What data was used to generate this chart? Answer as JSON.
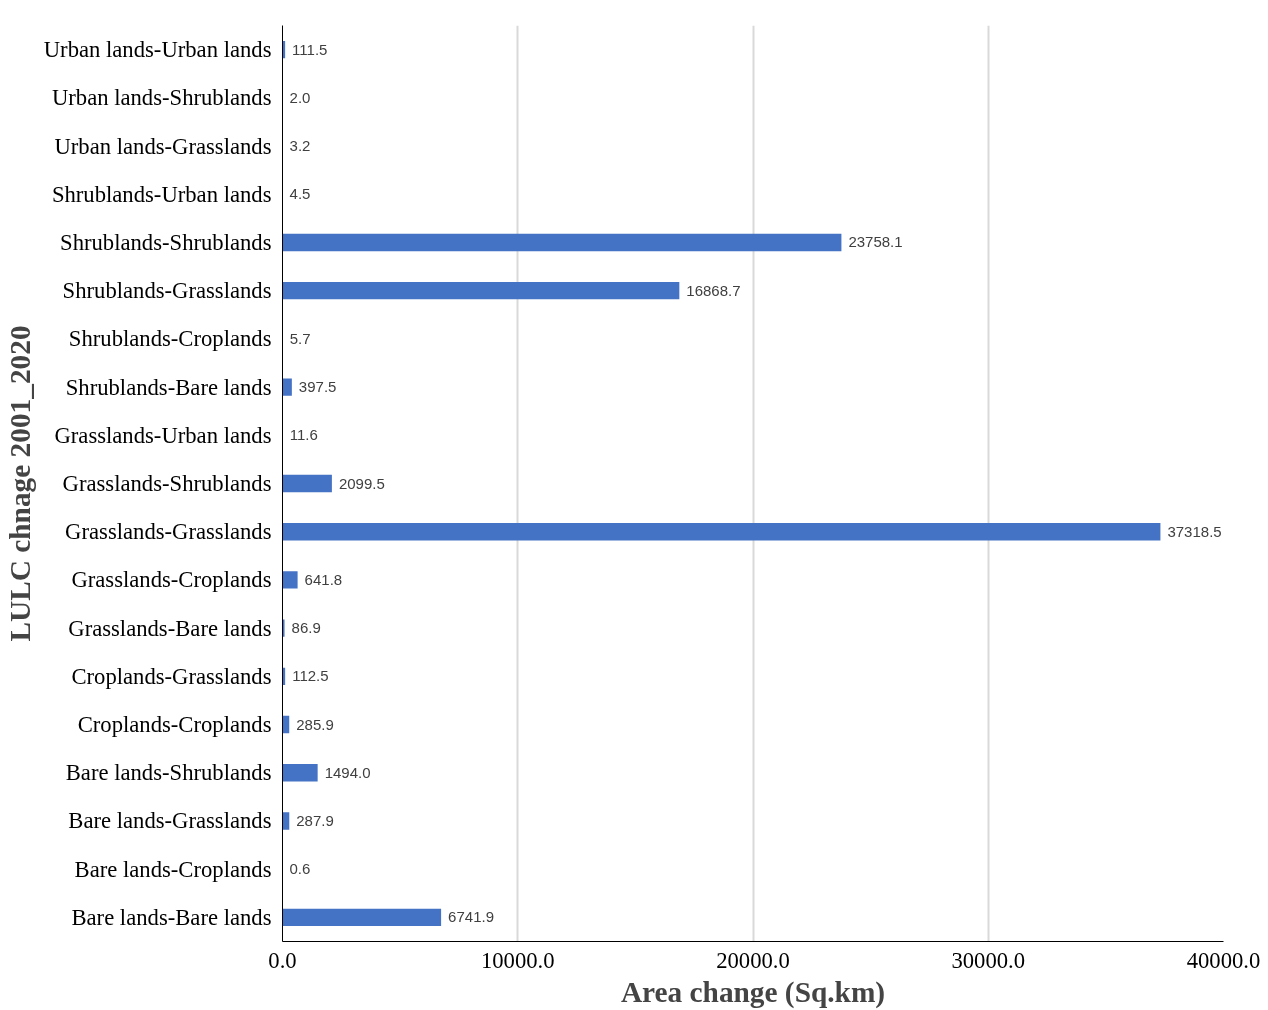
{
  "chart_data": {
    "type": "bar",
    "orientation": "horizontal",
    "xlabel": "Area change (Sq.km)",
    "ylabel": "LULC chnage 2001_2020",
    "categories": [
      "Urban lands-Urban lands",
      "Urban lands-Shrublands",
      "Urban lands-Grasslands",
      "Shrublands-Urban lands",
      "Shrublands-Shrublands",
      "Shrublands-Grasslands",
      "Shrublands-Croplands",
      "Shrublands-Bare lands",
      "Grasslands-Urban lands",
      "Grasslands-Shrublands",
      "Grasslands-Grasslands",
      "Grasslands-Croplands",
      "Grasslands-Bare lands",
      "Croplands-Grasslands",
      "Croplands-Croplands",
      "Bare lands-Shrublands",
      "Bare lands-Grasslands",
      "Bare lands-Croplands",
      "Bare lands-Bare lands"
    ],
    "values": [
      111.5,
      2.0,
      3.2,
      4.5,
      23758.1,
      16868.7,
      5.7,
      397.5,
      11.6,
      2099.5,
      37318.5,
      641.8,
      86.9,
      112.5,
      285.9,
      1494.0,
      287.9,
      0.6,
      6741.9
    ],
    "value_labels": [
      "111.5",
      "2.0",
      "3.2",
      "4.5",
      "23758.1",
      "16868.7",
      "5.7",
      "397.5",
      "11.6",
      "2099.5",
      "37318.5",
      "641.8",
      "86.9",
      "112.5",
      "285.9",
      "1494.0",
      "287.9",
      "0.6",
      "6741.9"
    ],
    "color": "#4472c4",
    "xlim": [
      0,
      40000
    ],
    "xticks": [
      {
        "value": 0,
        "label": "0.0"
      },
      {
        "value": 10000,
        "label": "10000.0"
      },
      {
        "value": 20000,
        "label": "20000.0"
      },
      {
        "value": 30000,
        "label": "30000.0"
      },
      {
        "value": 40000,
        "label": "40000.0"
      }
    ],
    "grid": "x"
  }
}
